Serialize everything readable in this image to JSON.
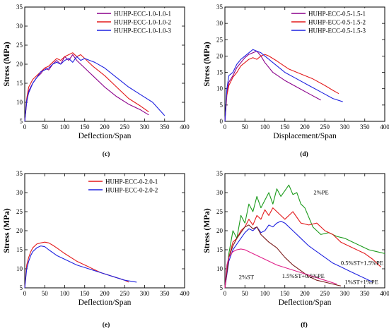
{
  "colors": {
    "purple": "#8B008B",
    "red": "#E31A1C",
    "blue": "#1F22E0",
    "green": "#1A9A1A",
    "magenta": "#E0208A",
    "darkred": "#7A1A1A"
  },
  "chart_data": [
    {
      "type": "line",
      "panel_label": "(c)",
      "xlabel": "Deflection/Span",
      "ylabel": "Stress (MPa)",
      "xlim": [
        0,
        400
      ],
      "ylim": [
        5,
        35
      ],
      "xticks": [
        0,
        50,
        100,
        150,
        200,
        250,
        300,
        350,
        400
      ],
      "yticks": [
        5,
        10,
        15,
        20,
        25,
        30,
        35
      ],
      "legend": "top-right",
      "series": [
        {
          "name": "HUHP-ECC-1.0-1.0-1",
          "color": "purple",
          "x": [
            0,
            5,
            10,
            20,
            30,
            40,
            50,
            60,
            70,
            80,
            90,
            100,
            110,
            120,
            130,
            140,
            150,
            170,
            200,
            230,
            260,
            290,
            310
          ],
          "y": [
            5,
            10,
            13,
            15,
            16.5,
            17.5,
            19,
            18.5,
            20,
            21,
            20,
            22,
            21,
            22.5,
            21,
            20,
            19,
            17,
            14,
            11.5,
            9.5,
            8,
            6.7
          ]
        },
        {
          "name": "HUHP-ECC-1.0-1.0-2",
          "color": "red",
          "x": [
            0,
            5,
            10,
            20,
            30,
            40,
            50,
            60,
            70,
            80,
            90,
            100,
            110,
            120,
            130,
            140,
            150,
            170,
            200,
            230,
            260,
            290,
            310
          ],
          "y": [
            5,
            11,
            14,
            16,
            17,
            18,
            19,
            19.5,
            20.5,
            21.5,
            21,
            22,
            22.5,
            23,
            22,
            22.5,
            21.5,
            19.5,
            17,
            14,
            11,
            9,
            7.5
          ]
        },
        {
          "name": "HUHP-ECC-1.0-1.0-3",
          "color": "blue",
          "x": [
            0,
            5,
            10,
            20,
            30,
            40,
            50,
            60,
            70,
            80,
            90,
            100,
            110,
            120,
            130,
            140,
            150,
            175,
            200,
            230,
            260,
            290,
            320,
            350
          ],
          "y": [
            5,
            10.5,
            12.5,
            15,
            16.5,
            18,
            18.5,
            19,
            20,
            20.5,
            20,
            21,
            21.5,
            20.5,
            22,
            21,
            21.5,
            20.5,
            19,
            16.5,
            14,
            12,
            10,
            6.5
          ]
        }
      ]
    },
    {
      "type": "line",
      "panel_label": "(d)",
      "xlabel": "Displacement/Span",
      "ylabel": "Stress (MPa)",
      "xlim": [
        0,
        400
      ],
      "ylim": [
        0,
        35
      ],
      "xticks": [
        0,
        50,
        100,
        150,
        200,
        250,
        300,
        350,
        400
      ],
      "yticks": [
        0,
        5,
        10,
        15,
        20,
        25,
        30,
        35
      ],
      "legend": "top-right",
      "series": [
        {
          "name": "HUHP-ECC-0.5-1.5-1",
          "color": "purple",
          "x": [
            0,
            5,
            10,
            20,
            30,
            40,
            50,
            60,
            70,
            80,
            90,
            100,
            120,
            150,
            180,
            210,
            240
          ],
          "y": [
            0,
            9,
            12,
            14,
            16.5,
            18,
            19.5,
            20.5,
            21,
            21.5,
            20,
            18,
            15,
            12.5,
            10.5,
            8.5,
            6.5
          ]
        },
        {
          "name": "HUHP-ECC-0.5-1.5-2",
          "color": "red",
          "x": [
            0,
            5,
            10,
            20,
            30,
            40,
            50,
            60,
            70,
            80,
            90,
            100,
            110,
            130,
            160,
            190,
            220,
            250,
            270,
            285
          ],
          "y": [
            0,
            8,
            11,
            13.5,
            15,
            17,
            18,
            19,
            19.5,
            19,
            20,
            20.5,
            20,
            18.5,
            16,
            14.5,
            13,
            11,
            9.5,
            8.5
          ]
        },
        {
          "name": "HUHP-ECC-0.5-1.5-3",
          "color": "blue",
          "x": [
            0,
            5,
            10,
            20,
            30,
            40,
            50,
            60,
            70,
            80,
            90,
            100,
            120,
            150,
            180,
            210,
            240,
            270,
            295
          ],
          "y": [
            0,
            10,
            14,
            15,
            17.5,
            19,
            20,
            21,
            22,
            21.5,
            21,
            20,
            18,
            15,
            13,
            11,
            9,
            7,
            6
          ]
        }
      ]
    },
    {
      "type": "line",
      "panel_label": "(e)",
      "xlabel": "Deflection/Span",
      "ylabel": "Stress (MPa)",
      "xlim": [
        0,
        400
      ],
      "ylim": [
        5,
        35
      ],
      "xticks": [
        0,
        50,
        100,
        150,
        200,
        250,
        300,
        350,
        400
      ],
      "yticks": [
        5,
        10,
        15,
        20,
        25,
        30,
        35
      ],
      "legend": "top-right",
      "series": [
        {
          "name": "HUHP-ECC-0-2.0-1",
          "color": "red",
          "x": [
            0,
            5,
            10,
            15,
            20,
            30,
            40,
            50,
            60,
            70,
            80,
            100,
            130,
            160,
            190,
            220,
            250,
            260
          ],
          "y": [
            5,
            11,
            13,
            14.5,
            15.5,
            16.5,
            16.8,
            17,
            16.8,
            16.2,
            15.5,
            14,
            12,
            10.5,
            9,
            8,
            7,
            6.5
          ]
        },
        {
          "name": "HUHP-ECC-0-2.0-2",
          "color": "blue",
          "x": [
            0,
            5,
            10,
            15,
            20,
            30,
            40,
            50,
            60,
            80,
            100,
            130,
            160,
            190,
            220,
            250,
            280
          ],
          "y": [
            5,
            10,
            12,
            13.5,
            14.5,
            15.5,
            16,
            15.8,
            15,
            13.5,
            12.5,
            11,
            10,
            9,
            8,
            7,
            6.5
          ]
        }
      ]
    },
    {
      "type": "line",
      "panel_label": "(f)",
      "xlabel": "Deflection/Span",
      "ylabel": "Stress (MPa)",
      "xlim": [
        0,
        400
      ],
      "ylim": [
        5,
        35
      ],
      "xticks": [
        0,
        50,
        100,
        150,
        200,
        250,
        300,
        350,
        400
      ],
      "yticks": [
        5,
        10,
        15,
        20,
        25,
        30,
        35
      ],
      "series": [
        {
          "name": "2%PE",
          "color": "green",
          "x": [
            0,
            10,
            20,
            30,
            40,
            50,
            60,
            70,
            80,
            90,
            100,
            110,
            120,
            130,
            140,
            150,
            160,
            170,
            180,
            190,
            200,
            220,
            240,
            260,
            280,
            300,
            320,
            340,
            360,
            380,
            400
          ],
          "y": [
            5,
            14,
            20,
            18,
            24,
            22,
            27,
            25,
            29,
            26,
            28,
            30,
            27,
            31,
            29,
            30.5,
            32,
            29.5,
            30,
            27,
            26,
            21,
            19,
            19.5,
            18.5,
            18,
            17,
            16,
            15,
            14.5,
            14
          ]
        },
        {
          "name": "0.5%ST+1.5%PE",
          "color": "red",
          "x": [
            0,
            10,
            20,
            30,
            40,
            50,
            60,
            70,
            80,
            90,
            100,
            110,
            120,
            130,
            140,
            150,
            170,
            190,
            210,
            230,
            250,
            270,
            290,
            310,
            330,
            350,
            370,
            390
          ],
          "y": [
            5,
            13,
            17,
            18,
            20,
            21,
            23,
            21.5,
            24,
            23,
            25.5,
            24,
            26,
            25,
            24,
            23,
            25,
            22,
            21.5,
            22,
            20,
            19,
            17,
            16,
            15,
            14,
            12.5,
            10.5
          ]
        },
        {
          "name": "1%ST+1%PE",
          "color": "blue",
          "x": [
            0,
            10,
            20,
            30,
            40,
            50,
            60,
            70,
            80,
            90,
            100,
            110,
            120,
            130,
            140,
            150,
            170,
            190,
            210,
            230,
            250,
            270,
            290,
            310,
            330,
            350,
            370
          ],
          "y": [
            5,
            12,
            15,
            16.5,
            18,
            19.5,
            20.5,
            20,
            21,
            19.5,
            20,
            21.5,
            21,
            22,
            22.5,
            22,
            20,
            18,
            16,
            14.5,
            13,
            11.5,
            10.5,
            9.5,
            8.5,
            7.5,
            6.5
          ]
        },
        {
          "name": "1.5%ST+0.5%PE",
          "color": "darkred",
          "x": [
            0,
            10,
            20,
            30,
            40,
            50,
            60,
            70,
            80,
            90,
            100,
            110,
            130,
            150,
            170,
            190,
            210,
            230,
            250,
            270,
            290
          ],
          "y": [
            5,
            13,
            16,
            18,
            19.5,
            21,
            21.5,
            20.5,
            21,
            19,
            18,
            17,
            15.5,
            13,
            11,
            9.5,
            8,
            7,
            6.5,
            6,
            5.5
          ]
        },
        {
          "name": "2%ST",
          "color": "magenta",
          "x": [
            0,
            5,
            10,
            20,
            30,
            40,
            50,
            60,
            80,
            100,
            130,
            160,
            190,
            220,
            250,
            280
          ],
          "y": [
            5,
            11,
            13,
            14.5,
            15,
            15.2,
            15,
            14.5,
            13.5,
            12.5,
            11,
            10,
            9,
            8,
            7,
            6
          ]
        }
      ],
      "annotations": [
        {
          "text": "2%PE",
          "x": 222,
          "y": 29.5
        },
        {
          "text": "0.5%ST+1.5%PE",
          "x": 290,
          "y": 11
        },
        {
          "text": "1%ST+1%PE",
          "x": 300,
          "y": 6
        },
        {
          "text": "1.5%ST+0.5%PE",
          "x": 143,
          "y": 7.6
        },
        {
          "text": "2%ST",
          "x": 35,
          "y": 7.3
        }
      ]
    }
  ]
}
